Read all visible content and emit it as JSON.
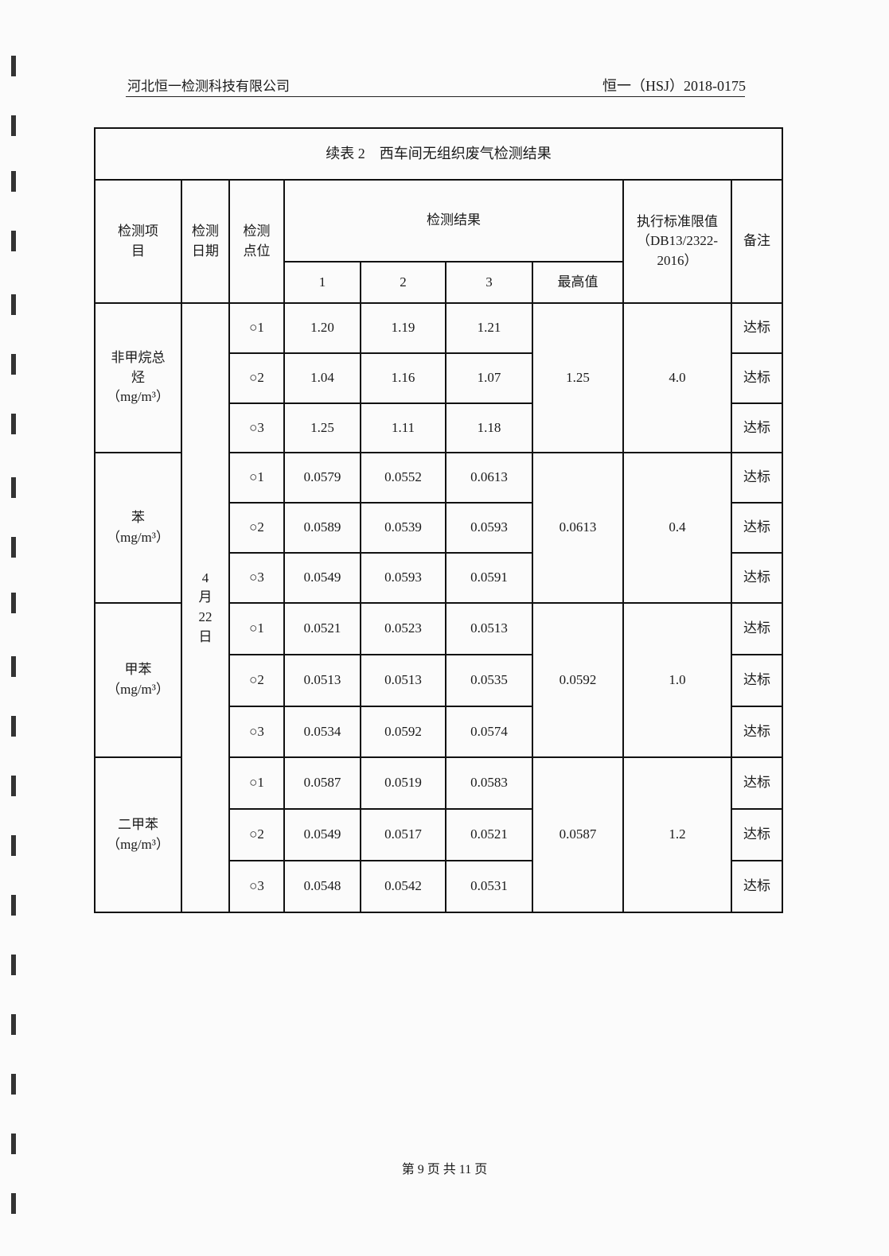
{
  "header": {
    "company": "河北恒一检测科技有限公司",
    "report_no": "恒一（HSJ）2018-0175"
  },
  "table": {
    "title": "续表 2　西车间无组织废气检测结果",
    "columns": {
      "item": "检测项目",
      "date": "检测日期",
      "point": "检测点位",
      "results": "检测结果",
      "r1": "1",
      "r2": "2",
      "r3": "3",
      "max": "最高值",
      "standard": "执行标准限值（DB13/2322-2016）",
      "remark": "备注"
    },
    "date": "4月22日",
    "groups": [
      {
        "item": "非甲烷总烃（mg/m³）",
        "max": "1.25",
        "limit": "4.0",
        "rows": [
          {
            "point": "○1",
            "v": [
              "1.20",
              "1.19",
              "1.21"
            ],
            "remark": "达标"
          },
          {
            "point": "○2",
            "v": [
              "1.04",
              "1.16",
              "1.07"
            ],
            "remark": "达标"
          },
          {
            "point": "○3",
            "v": [
              "1.25",
              "1.11",
              "1.18"
            ],
            "remark": "达标"
          }
        ]
      },
      {
        "item": "苯（mg/m³）",
        "max": "0.0613",
        "limit": "0.4",
        "rows": [
          {
            "point": "○1",
            "v": [
              "0.0579",
              "0.0552",
              "0.0613"
            ],
            "remark": "达标"
          },
          {
            "point": "○2",
            "v": [
              "0.0589",
              "0.0539",
              "0.0593"
            ],
            "remark": "达标"
          },
          {
            "point": "○3",
            "v": [
              "0.0549",
              "0.0593",
              "0.0591"
            ],
            "remark": "达标"
          }
        ]
      },
      {
        "item": "甲苯（mg/m³）",
        "max": "0.0592",
        "limit": "1.0",
        "rows": [
          {
            "point": "○1",
            "v": [
              "0.0521",
              "0.0523",
              "0.0513"
            ],
            "remark": "达标"
          },
          {
            "point": "○2",
            "v": [
              "0.0513",
              "0.0513",
              "0.0535"
            ],
            "remark": "达标"
          },
          {
            "point": "○3",
            "v": [
              "0.0534",
              "0.0592",
              "0.0574"
            ],
            "remark": "达标"
          }
        ]
      },
      {
        "item": "二甲苯（mg/m³）",
        "max": "0.0587",
        "limit": "1.2",
        "rows": [
          {
            "point": "○1",
            "v": [
              "0.0587",
              "0.0519",
              "0.0583"
            ],
            "remark": "达标"
          },
          {
            "point": "○2",
            "v": [
              "0.0549",
              "0.0517",
              "0.0521"
            ],
            "remark": "达标"
          },
          {
            "point": "○3",
            "v": [
              "0.0548",
              "0.0542",
              "0.0531"
            ],
            "remark": "达标"
          }
        ]
      }
    ]
  },
  "footer": {
    "page": "第 9 页 共 11 页"
  }
}
